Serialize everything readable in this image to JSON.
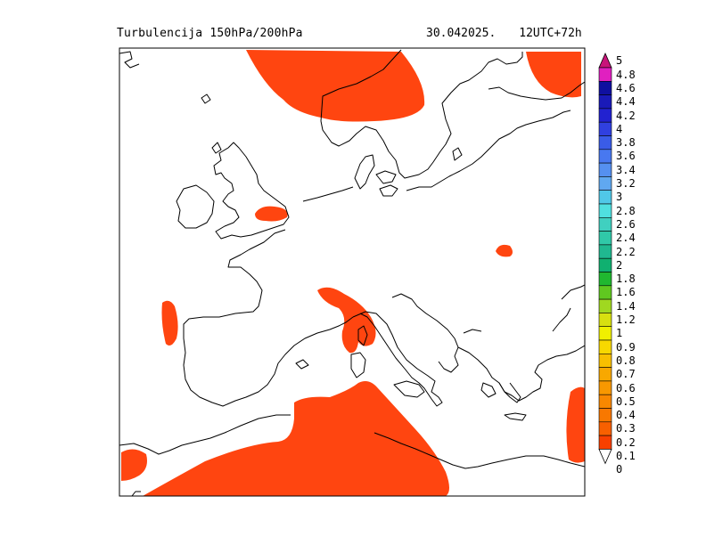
{
  "header": {
    "title": "Turbulencija 150hPa/200hPa",
    "date": "30.042025.",
    "run": "12UTC+72h"
  },
  "colorbar": {
    "levels": [
      "5",
      "4.8",
      "4.6",
      "4.4",
      "4.2",
      "4",
      "3.8",
      "3.6",
      "3.4",
      "3.2",
      "3",
      "2.8",
      "2.6",
      "2.4",
      "2.2",
      "2",
      "1.8",
      "1.6",
      "1.4",
      "1.2",
      "1",
      "0.9",
      "0.8",
      "0.7",
      "0.6",
      "0.5",
      "0.4",
      "0.3",
      "0.2",
      "0.1",
      "0"
    ],
    "colors": [
      "#c8147a",
      "#e020c0",
      "#1010a0",
      "#1a1ab8",
      "#2222d0",
      "#3040e0",
      "#3a5ce8",
      "#4878f0",
      "#5590f0",
      "#60a8f0",
      "#50c8e8",
      "#50e0e0",
      "#40d0c0",
      "#30c8a8",
      "#20b890",
      "#10b070",
      "#20b830",
      "#60c820",
      "#a0d820",
      "#d8e010",
      "#f0f000",
      "#f8d800",
      "#f8c000",
      "#f8a800",
      "#f89800",
      "#f88800",
      "#f87800",
      "#f86000",
      "#f84000",
      "#ffffff"
    ],
    "shaded_color": "#ff4510"
  },
  "map": {
    "region": "Europe",
    "shaded_level": "0.1"
  }
}
